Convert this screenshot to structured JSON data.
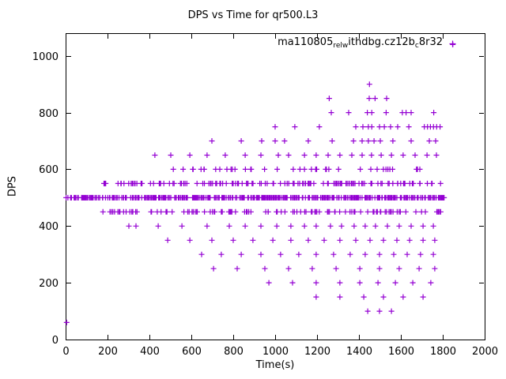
{
  "chart_data": {
    "type": "scatter",
    "title": "DPS vs Time for qr500.L3",
    "xlabel": "Time(s)",
    "ylabel": "DPS",
    "xlim": [
      0,
      2000
    ],
    "ylim": [
      0,
      1080
    ],
    "xticks": [
      0,
      200,
      400,
      600,
      800,
      1000,
      1200,
      1400,
      1600,
      1800,
      2000
    ],
    "yticks": [
      0,
      200,
      400,
      600,
      800,
      1000
    ],
    "grid": false,
    "legend": {
      "position": "top-right-inside"
    },
    "series": [
      {
        "name_plain": "ma110805_rel_withdbg.cz12b_c8r32",
        "name_segments": [
          {
            "text": "ma110805",
            "sub": false
          },
          {
            "text": "rel",
            "sub": true
          },
          {
            "text": "w",
            "sub": true
          },
          {
            "text": "ithdbg.cz12b",
            "sub": false
          },
          {
            "text": "c",
            "sub": true
          },
          {
            "text": "8r32",
            "sub": false
          }
        ],
        "marker": "plus",
        "color": "#9400d3",
        "points": [
          [
            5,
            60
          ],
          [
            1848,
            1040
          ],
          [
            1450,
            900
          ],
          [
            1258,
            850
          ],
          [
            1449,
            850
          ],
          [
            1477,
            850
          ],
          [
            1532,
            850
          ],
          [
            1268,
            800
          ],
          [
            1351,
            800
          ],
          [
            1440,
            800
          ],
          [
            1461,
            800
          ],
          [
            1530,
            800
          ],
          [
            1607,
            800
          ],
          [
            1625,
            800
          ],
          [
            1649,
            800
          ],
          [
            1757,
            800
          ],
          [
            1000,
            750
          ],
          [
            1094,
            750
          ],
          [
            1211,
            750
          ],
          [
            1385,
            750
          ],
          [
            1419,
            750
          ],
          [
            1445,
            750
          ],
          [
            1461,
            750
          ],
          [
            1498,
            750
          ],
          [
            1521,
            750
          ],
          [
            1551,
            750
          ],
          [
            1585,
            750
          ],
          [
            1638,
            750
          ],
          [
            1712,
            750
          ],
          [
            1727,
            750
          ],
          [
            1741,
            750
          ],
          [
            1756,
            750
          ],
          [
            1771,
            750
          ],
          [
            1787,
            750
          ],
          [
            698,
            700
          ],
          [
            838,
            700
          ],
          [
            936,
            700
          ],
          [
            1000,
            700
          ],
          [
            1045,
            700
          ],
          [
            1158,
            700
          ],
          [
            1272,
            700
          ],
          [
            1374,
            700
          ],
          [
            1415,
            700
          ],
          [
            1445,
            700
          ],
          [
            1472,
            700
          ],
          [
            1502,
            700
          ],
          [
            1562,
            700
          ],
          [
            1649,
            700
          ],
          [
            1736,
            700
          ],
          [
            1766,
            700
          ],
          [
            426,
            650
          ],
          [
            502,
            650
          ],
          [
            593,
            650
          ],
          [
            675,
            650
          ],
          [
            762,
            650
          ],
          [
            857,
            650
          ],
          [
            932,
            650
          ],
          [
            1015,
            650
          ],
          [
            1064,
            650
          ],
          [
            1140,
            650
          ],
          [
            1196,
            650
          ],
          [
            1253,
            650
          ],
          [
            1309,
            650
          ],
          [
            1366,
            650
          ],
          [
            1415,
            650
          ],
          [
            1460,
            650
          ],
          [
            1506,
            650
          ],
          [
            1555,
            650
          ],
          [
            1611,
            650
          ],
          [
            1668,
            650
          ],
          [
            1725,
            650
          ],
          [
            1770,
            650
          ],
          [
            302,
            400
          ],
          [
            336,
            400
          ],
          [
            442,
            400
          ],
          [
            555,
            400
          ],
          [
            675,
            400
          ],
          [
            781,
            400
          ],
          [
            857,
            400
          ],
          [
            932,
            400
          ],
          [
            1008,
            400
          ],
          [
            1075,
            400
          ],
          [
            1140,
            400
          ],
          [
            1196,
            400
          ],
          [
            1264,
            400
          ],
          [
            1317,
            400
          ],
          [
            1377,
            400
          ],
          [
            1430,
            400
          ],
          [
            1479,
            400
          ],
          [
            1536,
            400
          ],
          [
            1592,
            400
          ],
          [
            1649,
            400
          ],
          [
            1706,
            400
          ],
          [
            1755,
            400
          ],
          [
            487,
            350
          ],
          [
            593,
            350
          ],
          [
            698,
            350
          ],
          [
            800,
            350
          ],
          [
            894,
            350
          ],
          [
            989,
            350
          ],
          [
            1075,
            350
          ],
          [
            1158,
            350
          ],
          [
            1234,
            350
          ],
          [
            1309,
            350
          ],
          [
            1385,
            350
          ],
          [
            1453,
            350
          ],
          [
            1517,
            350
          ],
          [
            1581,
            350
          ],
          [
            1642,
            350
          ],
          [
            1706,
            350
          ],
          [
            1762,
            350
          ],
          [
            649,
            300
          ],
          [
            743,
            300
          ],
          [
            838,
            300
          ],
          [
            932,
            300
          ],
          [
            1026,
            300
          ],
          [
            1113,
            300
          ],
          [
            1196,
            300
          ],
          [
            1279,
            300
          ],
          [
            1358,
            300
          ],
          [
            1430,
            300
          ],
          [
            1498,
            300
          ],
          [
            1566,
            300
          ],
          [
            1630,
            300
          ],
          [
            1694,
            300
          ],
          [
            1755,
            300
          ],
          [
            706,
            250
          ],
          [
            819,
            250
          ],
          [
            951,
            250
          ],
          [
            1064,
            250
          ],
          [
            1177,
            250
          ],
          [
            1291,
            250
          ],
          [
            1404,
            250
          ],
          [
            1498,
            250
          ],
          [
            1592,
            250
          ],
          [
            1687,
            250
          ],
          [
            1762,
            250
          ],
          [
            970,
            200
          ],
          [
            1083,
            200
          ],
          [
            1196,
            200
          ],
          [
            1309,
            200
          ],
          [
            1404,
            200
          ],
          [
            1491,
            200
          ],
          [
            1574,
            200
          ],
          [
            1657,
            200
          ],
          [
            1743,
            200
          ],
          [
            1196,
            150
          ],
          [
            1309,
            150
          ],
          [
            1423,
            150
          ],
          [
            1517,
            150
          ],
          [
            1611,
            150
          ],
          [
            1706,
            150
          ],
          [
            1442,
            100
          ],
          [
            1498,
            100
          ],
          [
            1555,
            100
          ]
        ],
        "dense_bands": [
          {
            "y": 500,
            "x_min": 0,
            "x_max": 1808,
            "approx_count": 420
          },
          {
            "y": 550,
            "x_min": 178,
            "x_max": 1800,
            "approx_count": 135
          },
          {
            "y": 450,
            "x_min": 178,
            "x_max": 1800,
            "approx_count": 110
          },
          {
            "y": 600,
            "x_min": 480,
            "x_max": 1800,
            "approx_count": 40
          }
        ]
      }
    ]
  }
}
